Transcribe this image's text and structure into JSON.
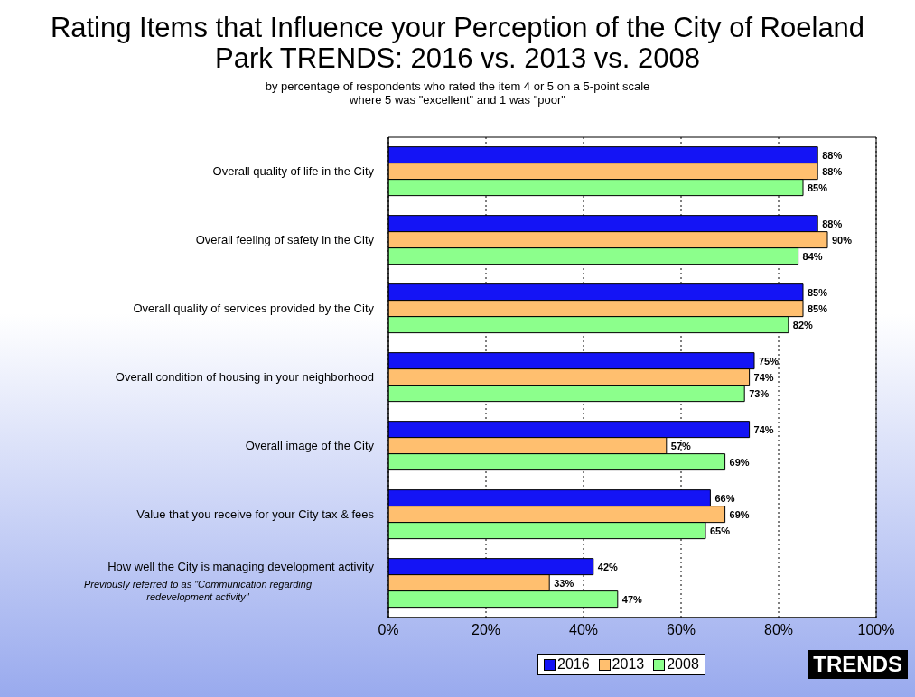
{
  "chart_data": {
    "type": "bar",
    "orientation": "horizontal",
    "title": "Rating Items that Influence your Perception of the City of Roeland Park TRENDS: 2016 vs. 2013 vs. 2008",
    "subtitle": "by percentage of respondents who rated the item 4 or 5 on a 5-point scale\nwhere 5 was \"excellent\" and 1 was \"poor\"",
    "categories": [
      "Overall quality of life in the City",
      "Overall feeling of safety in the City",
      "Overall quality of services provided by the City",
      "Overall condition of housing in your neighborhood",
      "Overall image of the City",
      "Value that you receive for your City tax & fees",
      "How well the City is managing development activity"
    ],
    "series": [
      {
        "name": "2016",
        "color": "#1414f5",
        "values": [
          88,
          88,
          85,
          75,
          74,
          66,
          42
        ],
        "value_labels": [
          "88%",
          "88%",
          "85%",
          "75%",
          "74%",
          "66%",
          "42%"
        ]
      },
      {
        "name": "2013",
        "color": "#ffbf6f",
        "values": [
          88,
          90,
          85,
          74,
          57,
          69,
          33
        ],
        "value_labels": [
          "88%",
          "90%",
          "85%",
          "74%",
          "57%",
          "69%",
          "33%"
        ]
      },
      {
        "name": "2008",
        "color": "#8cff8c",
        "values": [
          85,
          84,
          82,
          73,
          69,
          65,
          47
        ],
        "value_labels": [
          "85%",
          "84%",
          "82%",
          "73%",
          "69%",
          "65%",
          "47%"
        ]
      }
    ],
    "xlim": [
      0,
      100
    ],
    "xticks": [
      {
        "value": 0,
        "label": "0%"
      },
      {
        "value": 20,
        "label": "20%"
      },
      {
        "value": 40,
        "label": "40%"
      },
      {
        "value": 60,
        "label": "60%"
      },
      {
        "value": 80,
        "label": "80%"
      },
      {
        "value": 100,
        "label": "100%"
      }
    ],
    "grid": "x",
    "legend": "bottom",
    "annotations": [
      "Previously referred to as \"Communication regarding redevelopment activity\"",
      "TRENDS"
    ]
  }
}
